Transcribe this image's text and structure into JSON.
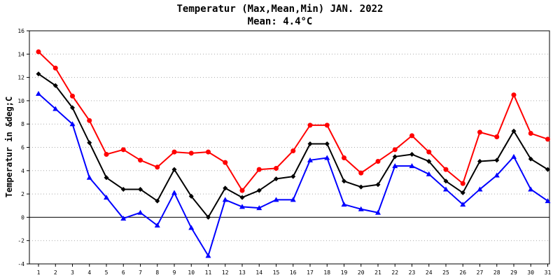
{
  "chart_data": {
    "type": "line",
    "title": "Temperatur (Max,Mean,Min) JAN. 2022",
    "subtitle": "Mean: 4.4°C",
    "xlabel": "",
    "ylabel": "Temperatur in &deg;C",
    "x": [
      1,
      2,
      3,
      4,
      5,
      6,
      7,
      8,
      9,
      10,
      11,
      12,
      13,
      14,
      15,
      16,
      17,
      18,
      19,
      20,
      21,
      22,
      23,
      24,
      25,
      26,
      27,
      28,
      29,
      30,
      31
    ],
    "ylim": [
      -4,
      16
    ],
    "yticks": [
      -4,
      -2,
      0,
      2,
      4,
      6,
      8,
      10,
      12,
      14,
      16
    ],
    "grid": true,
    "series": [
      {
        "key": "max",
        "color": "#ff0000",
        "marker": "circle",
        "values": [
          14.2,
          12.8,
          10.4,
          8.3,
          5.4,
          5.8,
          4.9,
          4.3,
          5.6,
          5.5,
          5.6,
          4.7,
          2.3,
          4.1,
          4.2,
          5.7,
          7.9,
          7.9,
          5.1,
          3.8,
          4.8,
          5.8,
          7.0,
          5.6,
          4.1,
          2.9,
          7.3,
          6.9,
          10.5,
          7.2,
          6.7
        ]
      },
      {
        "key": "mean",
        "color": "#000000",
        "marker": "diamond",
        "values": [
          12.3,
          11.3,
          9.4,
          6.4,
          3.4,
          2.4,
          2.4,
          1.4,
          4.1,
          1.8,
          0.0,
          2.5,
          1.7,
          2.3,
          3.3,
          3.5,
          6.3,
          6.3,
          3.1,
          2.6,
          2.8,
          5.2,
          5.4,
          4.8,
          3.1,
          2.1,
          4.8,
          4.9,
          7.4,
          5.0,
          4.1
        ]
      },
      {
        "key": "min",
        "color": "#0000ff",
        "marker": "triangle",
        "values": [
          10.6,
          9.3,
          8.0,
          3.4,
          1.7,
          -0.1,
          0.4,
          -0.7,
          2.1,
          -0.9,
          -3.3,
          1.5,
          0.9,
          0.8,
          1.5,
          1.5,
          4.9,
          5.1,
          1.1,
          0.7,
          0.4,
          4.4,
          4.4,
          3.7,
          2.4,
          1.1,
          2.4,
          3.6,
          5.2,
          2.4,
          1.4
        ]
      }
    ]
  }
}
